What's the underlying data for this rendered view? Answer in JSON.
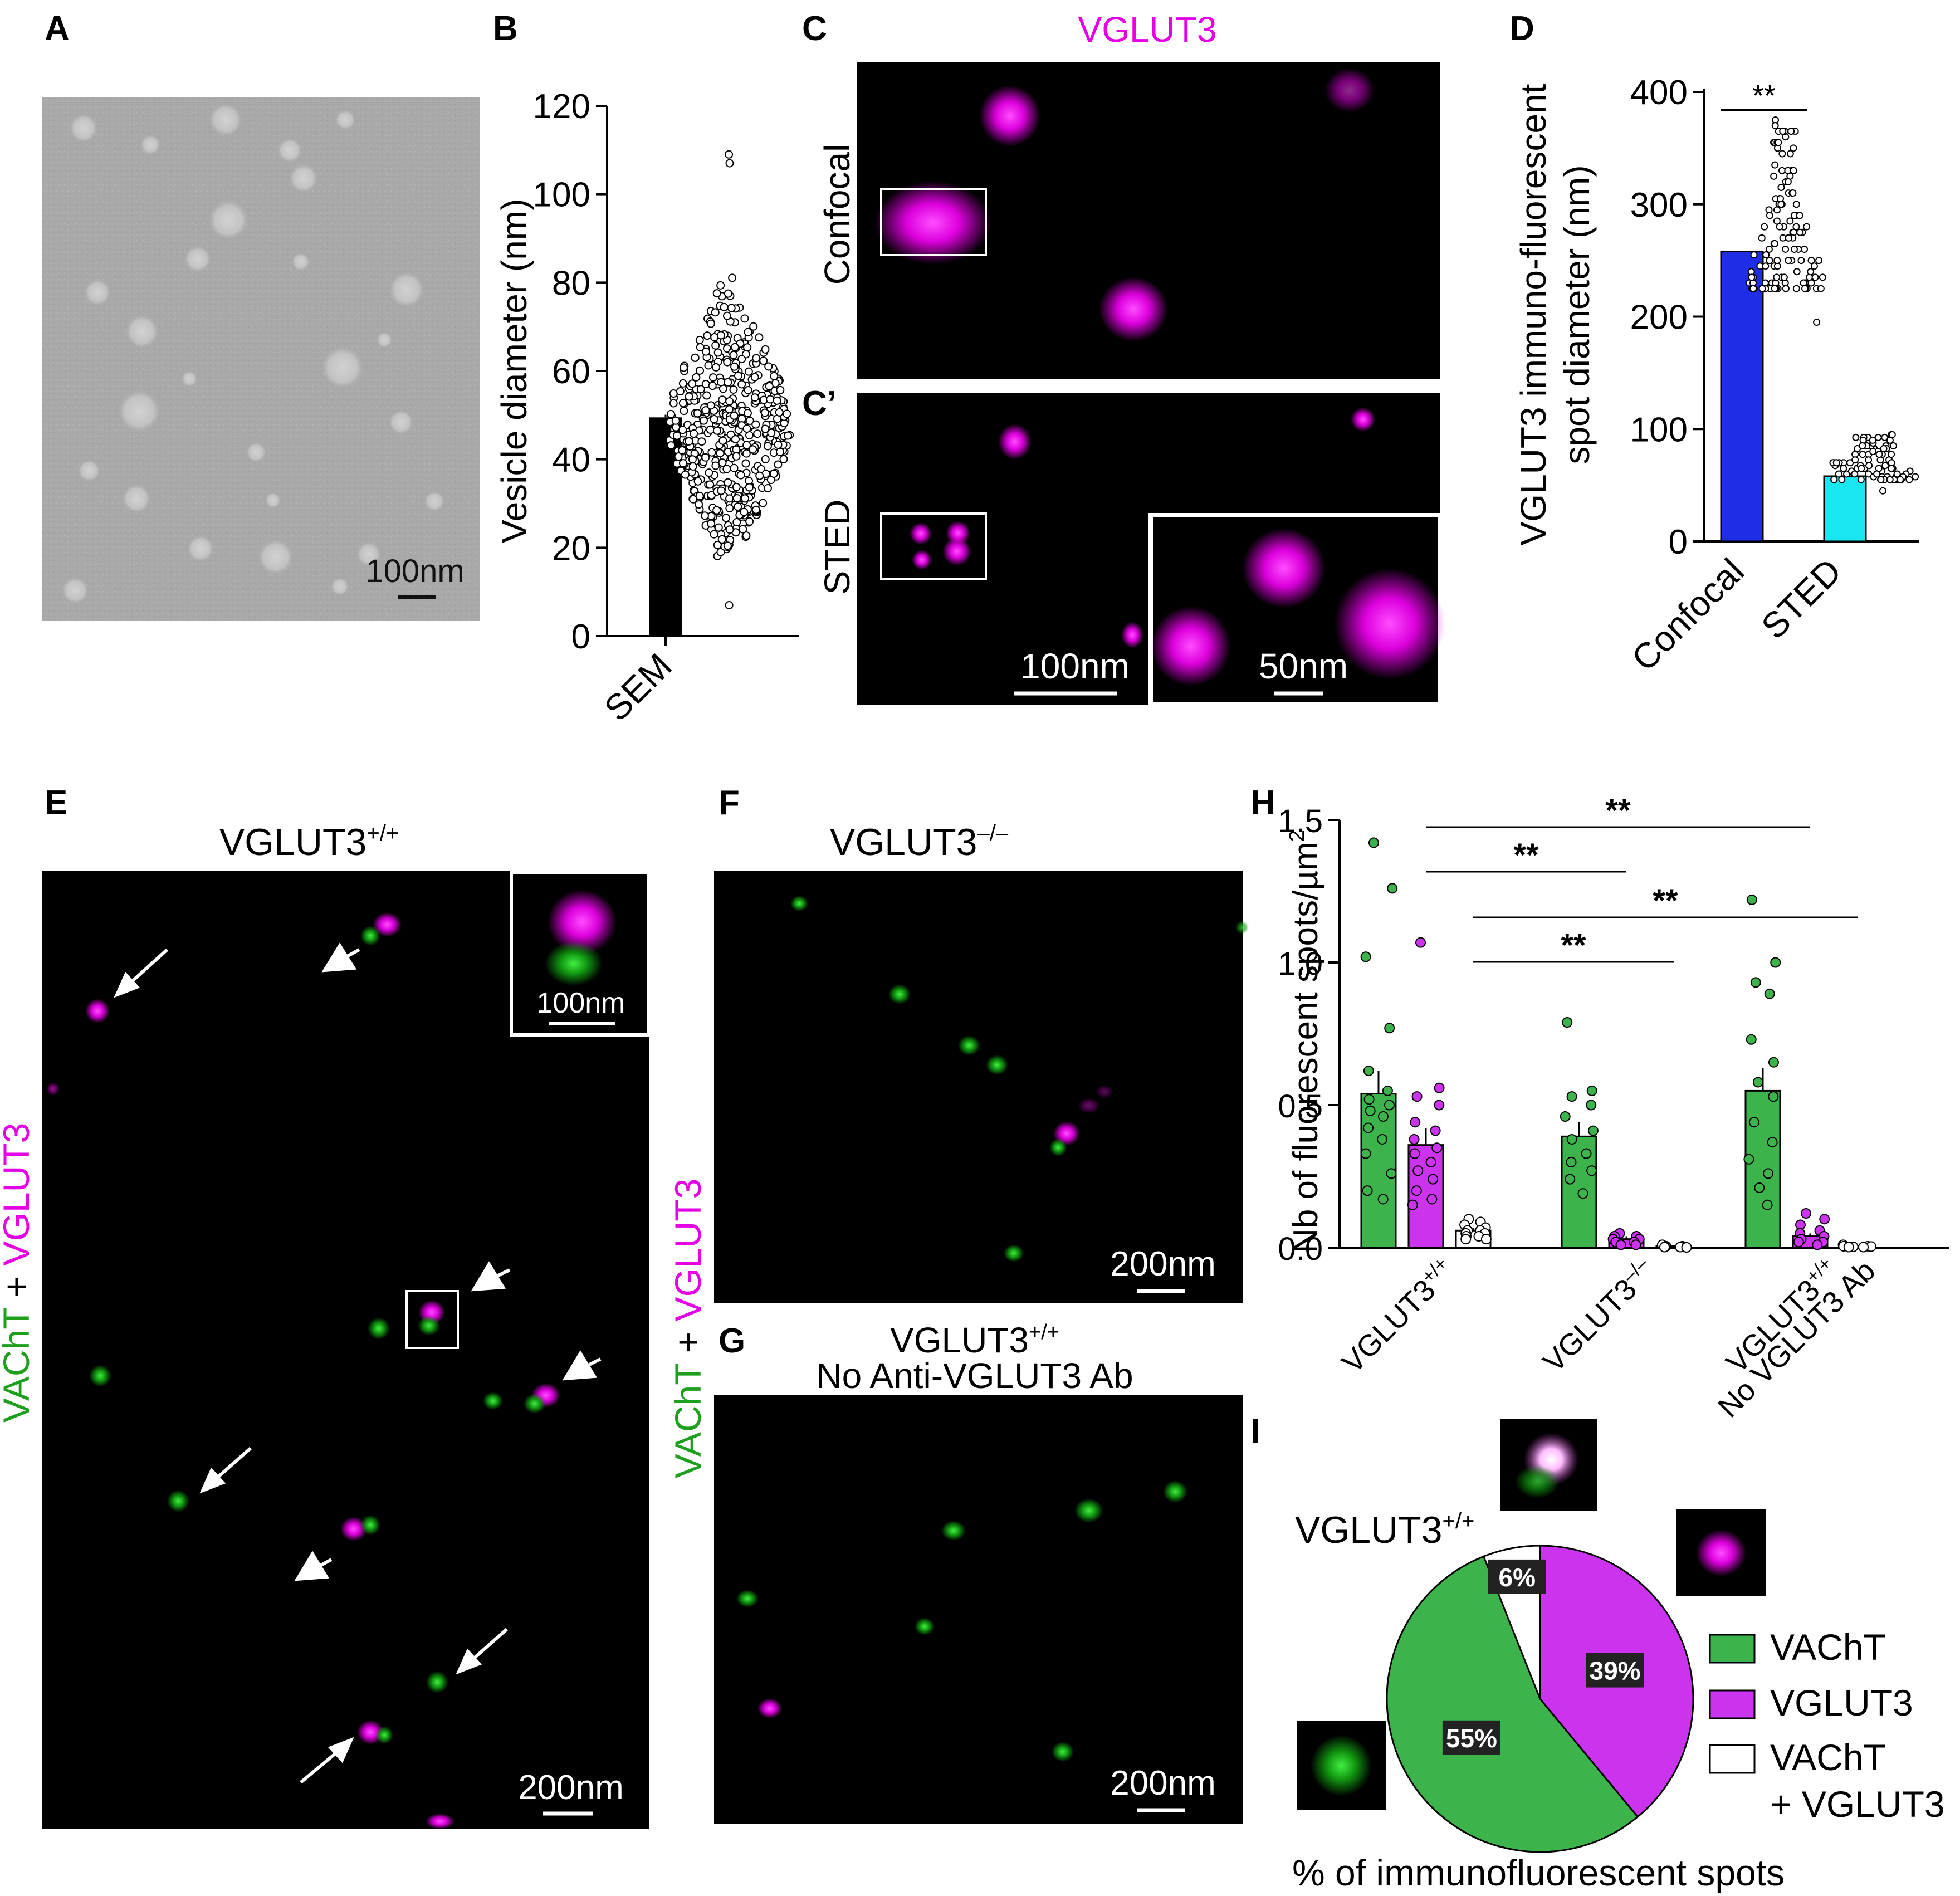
{
  "panel_letters": {
    "a": "A",
    "b": "B",
    "c": "C",
    "c_prime": "C’",
    "d": "D",
    "e": "E",
    "f": "F",
    "g": "G",
    "h": "H",
    "i": "I"
  },
  "colors": {
    "magenta": "#e600e6",
    "green": "#1ea01e",
    "blue": "#1f2ee6",
    "cyan": "#19e6f0",
    "pie_green": "#3cb44b",
    "pie_magenta": "#cc33ee"
  },
  "panel_a": {
    "scale_label": "100nm"
  },
  "panel_c": {
    "title": "VGLUT3",
    "confocal_label": "Confocal",
    "sted_label": "STED",
    "scale_main": "100nm",
    "scale_inset": "50nm"
  },
  "panel_e": {
    "title": "VGLUT3",
    "title_sup": "+/+",
    "side_label_green": "VAChT",
    "side_plus": " + ",
    "side_label_magenta": "VGLUT3",
    "inset_scale": "100nm",
    "scale": "200nm"
  },
  "panel_f": {
    "title": "VGLUT3",
    "title_sup": "–/–",
    "scale": "200nm"
  },
  "panel_g": {
    "title": "VGLUT3",
    "title_sup": "+/+",
    "subtitle": "No Anti-VGLUT3 Ab",
    "side_label_green": "VAChT",
    "side_plus": " + ",
    "side_label_magenta": "VGLUT3",
    "scale": "200nm"
  },
  "panel_i": {
    "genotype": "VGLUT3",
    "genotype_sup": "+/+",
    "footer": "% of immunofluorescent spots",
    "legend": [
      {
        "label": "VAChT",
        "color": "#3cb44b"
      },
      {
        "label": "VGLUT3",
        "color": "#cc33ee"
      },
      {
        "label": "VAChT",
        "label2": "+ VGLUT3",
        "color": "#ffffff"
      }
    ]
  },
  "chart_data": [
    {
      "panel": "B",
      "type": "bar",
      "categories": [
        "SEM"
      ],
      "values": [
        49.5
      ],
      "error": [
        0.6
      ],
      "ylabel": "Vesicle diameter (nm)",
      "ylim": [
        0,
        120
      ],
      "yticks": [
        0,
        20,
        40,
        60,
        80,
        100,
        120
      ],
      "points_summary": {
        "n_approx": 500,
        "range": [
          7,
          109
        ],
        "center": 48
      }
    },
    {
      "panel": "D",
      "type": "bar",
      "categories": [
        "Confocal",
        "STED"
      ],
      "values": [
        258,
        58
      ],
      "colors": [
        "#1f2ee6",
        "#19e6f0"
      ],
      "ylabel": "VGLUT3 immuno-fluorescent spot diameter (nm)",
      "ylabel_lines": [
        "VGLUT3 immuno-fluorescent",
        "spot diameter (nm)"
      ],
      "ylim": [
        0,
        400
      ],
      "yticks": [
        0,
        100,
        200,
        300,
        400
      ],
      "significance": "**",
      "points_summary": [
        {
          "category": "Confocal",
          "range": [
            196,
            375
          ]
        },
        {
          "category": "STED",
          "range": [
            45,
            95
          ]
        }
      ]
    },
    {
      "panel": "H",
      "type": "bar",
      "ylabel": "Nb of fluorescent spots/µm",
      "ylabel_sup": "2",
      "ylim": [
        0,
        1.5
      ],
      "yticks": [
        "0.0",
        "0.5",
        "1.0",
        "1.5"
      ],
      "groups": [
        {
          "label": "VGLUT3",
          "sup": "+/+",
          "label2": ""
        },
        {
          "label": "VGLUT3",
          "sup": "–/–",
          "label2": ""
        },
        {
          "label": "VGLUT3",
          "sup": "+/+",
          "label2": "No VGLUT3 Ab"
        }
      ],
      "series": [
        {
          "values": [
            0.54,
            0.39,
            0.55
          ],
          "errors": [
            0.08,
            0.05,
            0.08
          ],
          "color": "#3cb44b"
        },
        {
          "values": [
            0.36,
            0.03,
            0.04
          ],
          "errors": [
            0.06,
            0.01,
            0.01
          ],
          "color": "#cc33ee"
        },
        {
          "values": [
            0.06,
            0.005,
            0.005
          ],
          "errors": [
            0.01,
            0.002,
            0.002
          ],
          "color": "#ffffff"
        }
      ],
      "points": {
        "g0s0": [
          1.42,
          1.26,
          1.02,
          0.77,
          0.62,
          0.55,
          0.52,
          0.5,
          0.48,
          0.46,
          0.42,
          0.38,
          0.33,
          0.26,
          0.2,
          0.17
        ],
        "g0s1": [
          1.07,
          0.56,
          0.53,
          0.5,
          0.44,
          0.41,
          0.38,
          0.35,
          0.33,
          0.3,
          0.27,
          0.24,
          0.2,
          0.17,
          0.15
        ],
        "g0s2": [
          0.1,
          0.09,
          0.08,
          0.07,
          0.06,
          0.06,
          0.05,
          0.05,
          0.04,
          0.04,
          0.03,
          0.03
        ],
        "g1s0": [
          0.79,
          0.55,
          0.53,
          0.5,
          0.46,
          0.41,
          0.38,
          0.33,
          0.3,
          0.27,
          0.24,
          0.19
        ],
        "g1s1": [
          0.05,
          0.04,
          0.04,
          0.03,
          0.03,
          0.02,
          0.02,
          0.01,
          0.01
        ],
        "g1s2": [
          0.01,
          0.005,
          0.005,
          0.003,
          0.003,
          0.002,
          0.002,
          0.001
        ],
        "g2s0": [
          1.22,
          1.0,
          0.93,
          0.89,
          0.73,
          0.65,
          0.58,
          0.53,
          0.44,
          0.37,
          0.31,
          0.26,
          0.21,
          0.15
        ],
        "g2s1": [
          0.12,
          0.1,
          0.08,
          0.06,
          0.05,
          0.04,
          0.03,
          0.02,
          0.02,
          0.01
        ],
        "g2s2": [
          0.01,
          0.005,
          0.005,
          0.004,
          0.003,
          0.002,
          0.002
        ]
      },
      "significance": [
        {
          "from": [
            0,
            1
          ],
          "to": [
            2,
            1
          ],
          "label": "**"
        },
        {
          "from": [
            0,
            1
          ],
          "to": [
            1,
            1
          ],
          "label": "**"
        },
        {
          "from": [
            0,
            2
          ],
          "to": [
            2,
            2
          ],
          "label": "**"
        },
        {
          "from": [
            0,
            2
          ],
          "to": [
            1,
            2
          ],
          "label": "**"
        }
      ]
    },
    {
      "panel": "I",
      "type": "pie",
      "slices": [
        {
          "label": "VGLUT3",
          "value": 39,
          "text": "39%",
          "color": "#cc33ee"
        },
        {
          "label": "VAChT",
          "value": 55,
          "text": "55%",
          "color": "#3cb44b"
        },
        {
          "label": "VAChT + VGLUT3",
          "value": 6,
          "text": "6%",
          "color": "#ffffff"
        }
      ]
    }
  ]
}
